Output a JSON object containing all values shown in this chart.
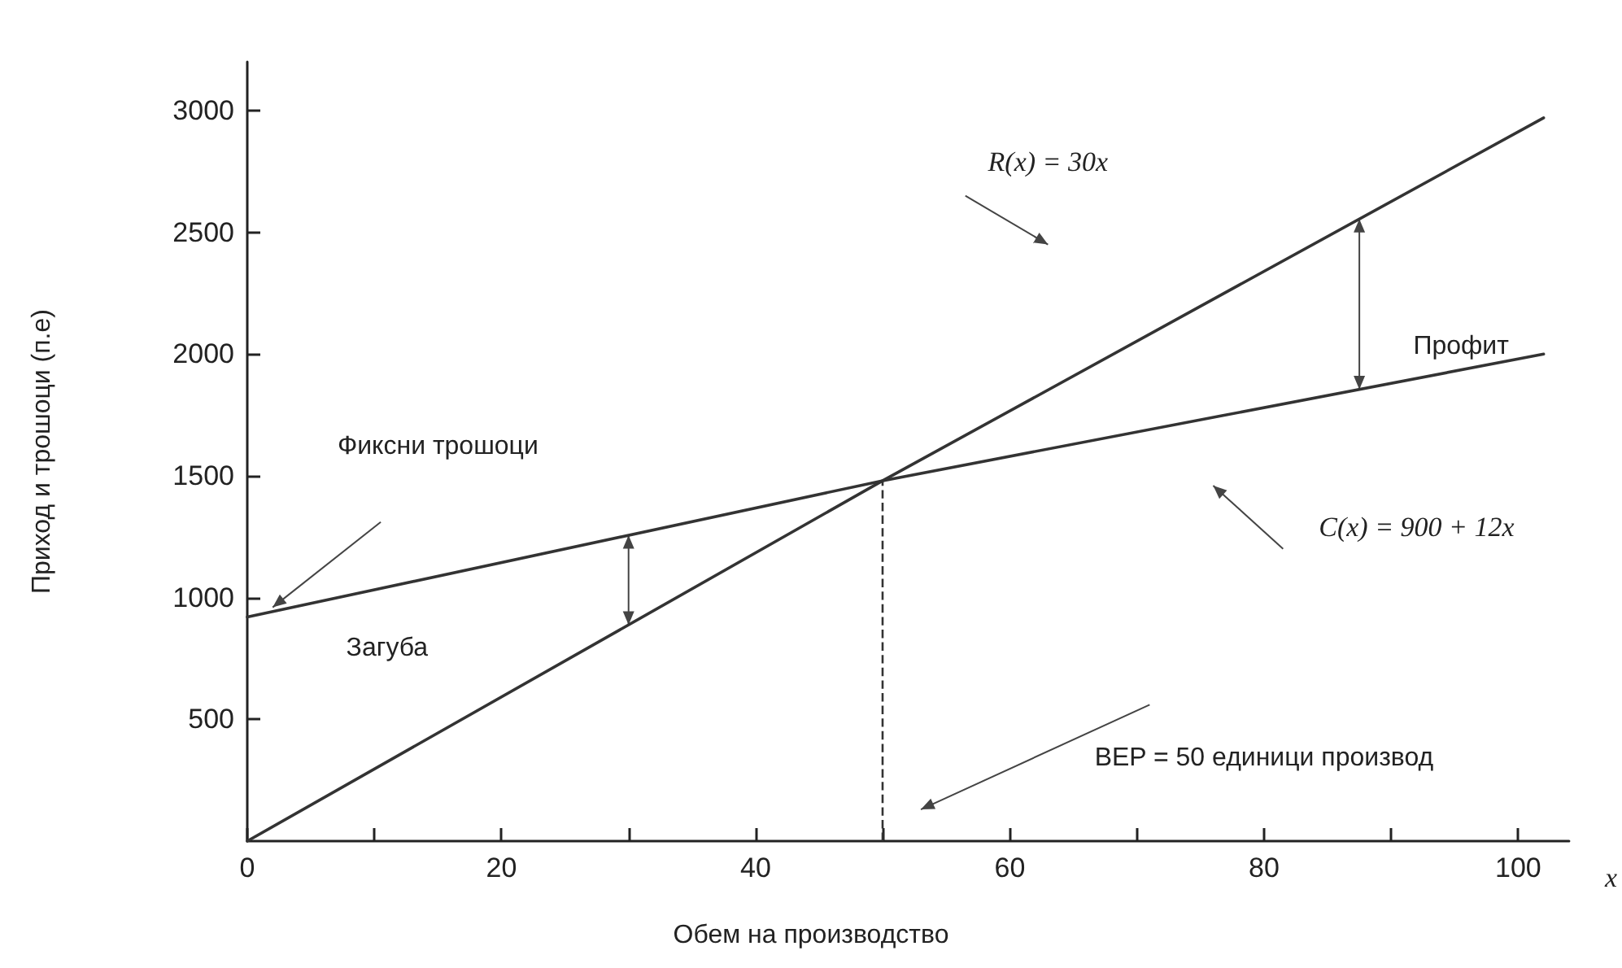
{
  "chart_data": {
    "type": "line",
    "xlabel": "Обем на производство",
    "ylabel": "Приход и трошоци (п.е)",
    "x": [
      0,
      50,
      102
    ],
    "series": [
      {
        "color": "#333333",
        "values": [
          0,
          1480,
          2970
        ]
      },
      {
        "color": "#333333",
        "values": [
          920,
          1480,
          2000
        ]
      }
    ],
    "xlim": [
      0,
      104
    ],
    "xticks": [
      0,
      {
        "value": 10,
        "label": null
      },
      20,
      {
        "value": 30,
        "label": null
      },
      40,
      {
        "value": 50,
        "label": null
      },
      60,
      {
        "value": 70,
        "label": null
      },
      80,
      {
        "value": 90,
        "label": null
      },
      100
    ],
    "ylim": [
      0,
      3200
    ],
    "yticks": [
      500,
      1000,
      1500,
      2000,
      2500,
      3000
    ],
    "ref_lines": [
      {
        "axis": "x",
        "value": 50,
        "line_style": "dashed",
        "color": "#333333"
      }
    ],
    "annotations": [
      "R(x) = 30x",
      "C(x) = 900 + 12x",
      "Профит",
      "Загуба",
      "Фиксни трошоци",
      "BEP = 50 единици производ",
      "x"
    ],
    "grid": false,
    "marker": "none",
    "line_style": "solid"
  }
}
